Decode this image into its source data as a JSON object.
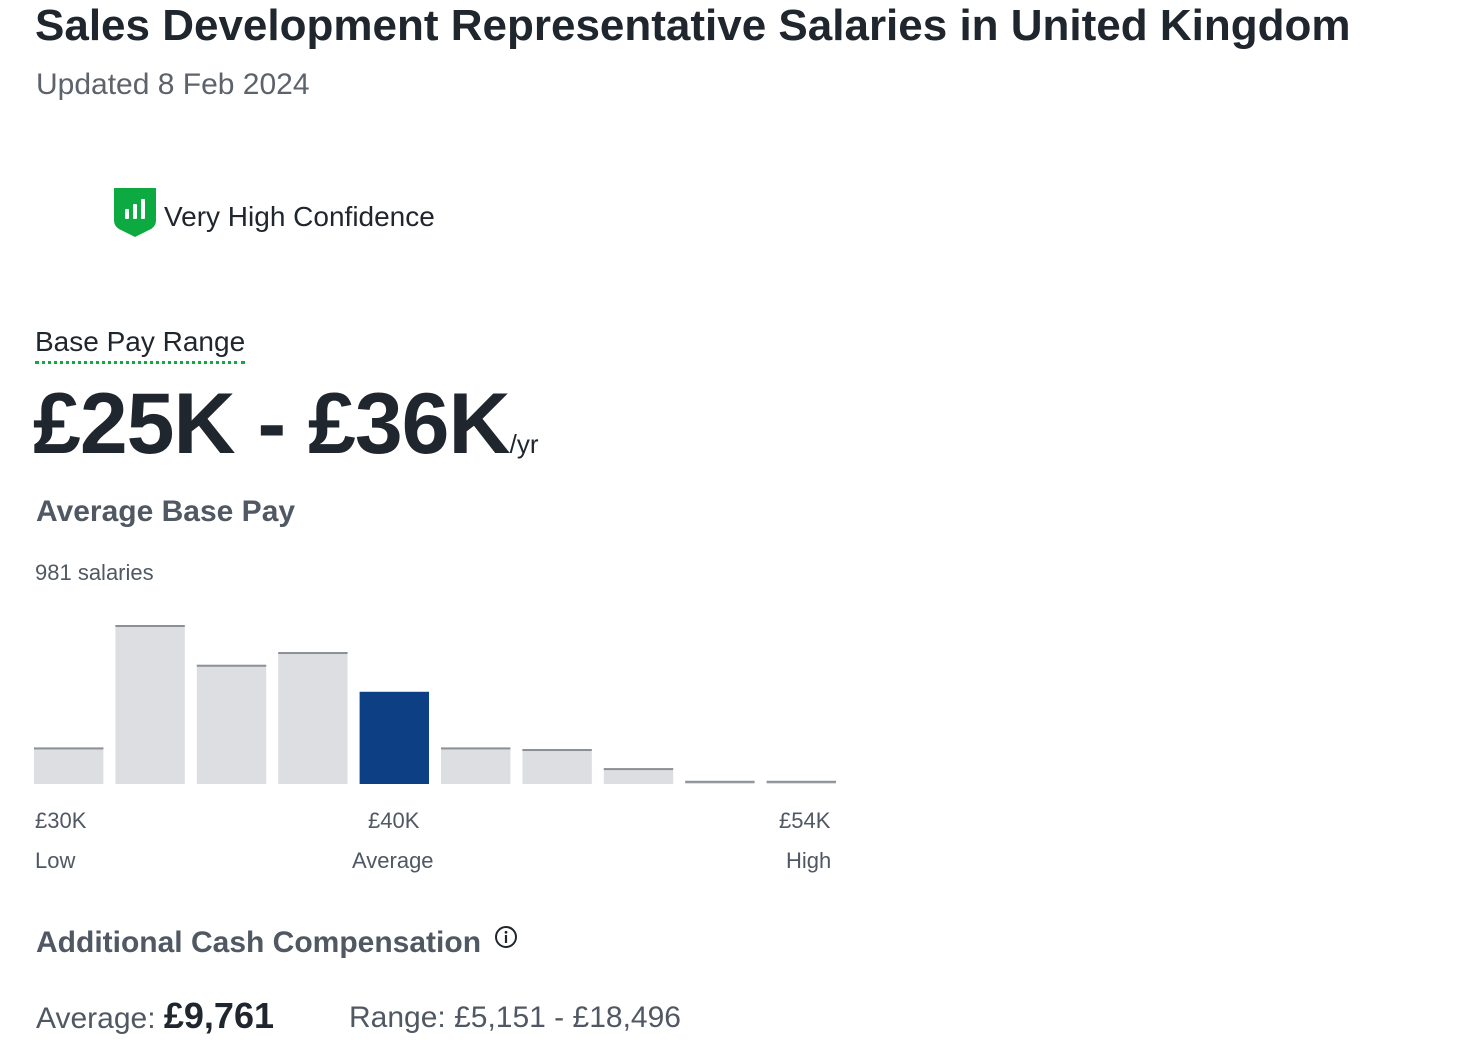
{
  "header": {
    "title": "Sales Development Representative Salaries in United Kingdom",
    "updated": "Updated 8 Feb 2024"
  },
  "confidence": {
    "label": "Very High Confidence",
    "icon": "confidence-shield-icon",
    "color": "#0caa41"
  },
  "base_pay": {
    "range_label": "Base Pay Range",
    "range_value": "£25K - £36K",
    "range_unit": "/yr"
  },
  "average_pay": {
    "heading": "Average Base Pay",
    "count": "981 salaries",
    "low_value": "£30K",
    "low_caption": "Low",
    "avg_value": "£40K",
    "avg_caption": "Average",
    "high_value": "£54K",
    "high_caption": "High"
  },
  "chart_data": {
    "type": "bar",
    "values": [
      0.23,
      1.0,
      0.75,
      0.83,
      0.58,
      0.23,
      0.22,
      0.1,
      0.02,
      0.02
    ],
    "highlight_index": 4,
    "colors": {
      "bar": "#dddee1",
      "bar_top": "#8b9097",
      "highlight": "#0d3f85"
    }
  },
  "additional": {
    "heading": "Additional Cash Compensation",
    "info_icon": "info-icon",
    "average_label": "Average:",
    "average_value": "£9,761",
    "range_label": "Range:",
    "range_value": "£5,151 - £18,496"
  }
}
